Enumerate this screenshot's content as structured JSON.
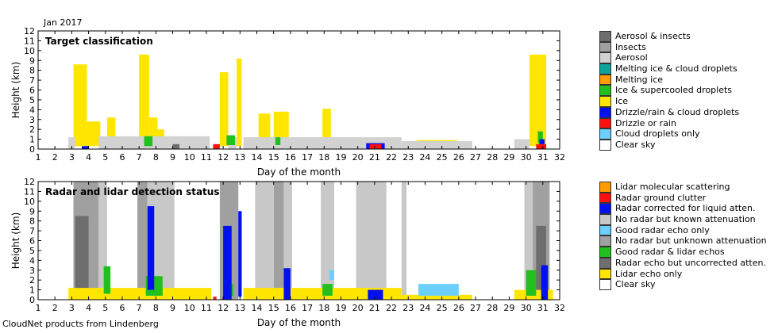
{
  "header": {
    "month_label": "Jan 2017"
  },
  "footer": {
    "credit": "CloudNet products from Lindenberg"
  },
  "chart_data": [
    {
      "type": "heatmap",
      "title": "Target classification",
      "xlabel": "Day of the month",
      "ylabel": "Height (km)",
      "xlim": [
        1,
        32
      ],
      "ylim": [
        0,
        12
      ],
      "xticks": [
        1,
        2,
        3,
        4,
        5,
        6,
        7,
        8,
        9,
        10,
        11,
        12,
        13,
        14,
        15,
        16,
        17,
        18,
        19,
        20,
        21,
        22,
        23,
        24,
        25,
        26,
        27,
        28,
        29,
        30,
        31,
        32
      ],
      "yticks": [
        0,
        1,
        2,
        3,
        4,
        5,
        6,
        7,
        8,
        9,
        10,
        11,
        12
      ],
      "legend": [
        {
          "label": "Aerosol & insects",
          "color": "#6e6e6e"
        },
        {
          "label": "Insects",
          "color": "#a0a0a0"
        },
        {
          "label": "Aerosol",
          "color": "#d2d2d2"
        },
        {
          "label": "Melting ice & cloud droplets",
          "color": "#0ea39a"
        },
        {
          "label": "Melting ice",
          "color": "#ff9a00"
        },
        {
          "label": "Ice & supercooled droplets",
          "color": "#22c01e"
        },
        {
          "label": "Ice",
          "color": "#ffe600"
        },
        {
          "label": "Drizzle/rain & cloud droplets",
          "color": "#0010ee"
        },
        {
          "label": "Drizzle or rain",
          "color": "#ff1010"
        },
        {
          "label": "Cloud droplets only",
          "color": "#6cd0ff"
        },
        {
          "label": "Clear sky",
          "color": "#ffffff"
        }
      ],
      "regions": [
        {
          "class": "Ice",
          "x0": 3.1,
          "x1": 3.9,
          "y0": 0.3,
          "y1": 8.6
        },
        {
          "class": "Ice",
          "x0": 3.9,
          "x1": 4.7,
          "y0": 0.3,
          "y1": 2.8
        },
        {
          "class": "Ice",
          "x0": 5.1,
          "x1": 5.6,
          "y0": 0.3,
          "y1": 3.2
        },
        {
          "class": "Ice",
          "x0": 7.0,
          "x1": 7.6,
          "y0": 0.3,
          "y1": 9.6
        },
        {
          "class": "Ice",
          "x0": 7.6,
          "x1": 8.1,
          "y0": 0.3,
          "y1": 3.2
        },
        {
          "class": "Ice",
          "x0": 8.1,
          "x1": 8.5,
          "y0": 0.3,
          "y1": 2.0
        },
        {
          "class": "Ice",
          "x0": 11.8,
          "x1": 12.3,
          "y0": 0.3,
          "y1": 7.8
        },
        {
          "class": "Ice",
          "x0": 12.8,
          "x1": 13.1,
          "y0": 0.3,
          "y1": 9.2
        },
        {
          "class": "Ice",
          "x0": 14.1,
          "x1": 14.8,
          "y0": 0.3,
          "y1": 3.6
        },
        {
          "class": "Ice",
          "x0": 15.0,
          "x1": 15.9,
          "y0": 0.3,
          "y1": 3.8
        },
        {
          "class": "Ice",
          "x0": 17.9,
          "x1": 18.4,
          "y0": 0.3,
          "y1": 4.1
        },
        {
          "class": "Ice",
          "x0": 23.5,
          "x1": 25.9,
          "y0": 0.1,
          "y1": 0.9
        },
        {
          "class": "Ice",
          "x0": 30.2,
          "x1": 31.2,
          "y0": 0.3,
          "y1": 9.6
        },
        {
          "class": "Aerosol",
          "x0": 2.8,
          "x1": 3.2,
          "y0": 0.0,
          "y1": 1.2
        },
        {
          "class": "Aerosol",
          "x0": 4.6,
          "x1": 11.2,
          "y0": 0.0,
          "y1": 1.3
        },
        {
          "class": "Aerosol",
          "x0": 12.3,
          "x1": 12.8,
          "y0": 0.0,
          "y1": 1.2
        },
        {
          "class": "Aerosol",
          "x0": 13.2,
          "x1": 22.6,
          "y0": 0.0,
          "y1": 1.2
        },
        {
          "class": "Aerosol",
          "x0": 22.6,
          "x1": 26.8,
          "y0": 0.0,
          "y1": 0.8
        },
        {
          "class": "Aerosol",
          "x0": 29.3,
          "x1": 30.2,
          "y0": 0.0,
          "y1": 1.0
        },
        {
          "class": "Aerosol & insects",
          "x0": 9.0,
          "x1": 9.4,
          "y0": 0.0,
          "y1": 0.5
        },
        {
          "class": "Ice & supercooled droplets",
          "x0": 7.3,
          "x1": 7.8,
          "y0": 0.3,
          "y1": 1.3
        },
        {
          "class": "Ice & supercooled droplets",
          "x0": 12.2,
          "x1": 12.7,
          "y0": 0.4,
          "y1": 1.4
        },
        {
          "class": "Ice & supercooled droplets",
          "x0": 15.1,
          "x1": 15.4,
          "y0": 0.4,
          "y1": 1.2
        },
        {
          "class": "Ice & supercooled droplets",
          "x0": 30.7,
          "x1": 31.0,
          "y0": 0.6,
          "y1": 1.8
        },
        {
          "class": "Drizzle/rain & cloud droplets",
          "x0": 3.6,
          "x1": 4.0,
          "y0": 0.0,
          "y1": 0.3
        },
        {
          "class": "Drizzle/rain & cloud droplets",
          "x0": 20.5,
          "x1": 21.6,
          "y0": 0.0,
          "y1": 0.6
        },
        {
          "class": "Drizzle/rain & cloud droplets",
          "x0": 30.8,
          "x1": 31.1,
          "y0": 0.3,
          "y1": 1.0
        },
        {
          "class": "Drizzle or rain",
          "x0": 11.4,
          "x1": 11.8,
          "y0": 0.0,
          "y1": 0.5
        },
        {
          "class": "Drizzle or rain",
          "x0": 20.7,
          "x1": 21.4,
          "y0": 0.0,
          "y1": 0.5
        },
        {
          "class": "Drizzle or rain",
          "x0": 30.6,
          "x1": 31.2,
          "y0": 0.0,
          "y1": 0.5
        }
      ]
    },
    {
      "type": "heatmap",
      "title": "Radar and lidar detection status",
      "xlabel": "Day of the month",
      "ylabel": "Height (km)",
      "xlim": [
        1,
        32
      ],
      "ylim": [
        0,
        12
      ],
      "xticks": [
        1,
        2,
        3,
        4,
        5,
        6,
        7,
        8,
        9,
        10,
        11,
        12,
        13,
        14,
        15,
        16,
        17,
        18,
        19,
        20,
        21,
        22,
        23,
        24,
        25,
        26,
        27,
        28,
        29,
        30,
        31,
        32
      ],
      "yticks": [
        0,
        1,
        2,
        3,
        4,
        5,
        6,
        7,
        8,
        9,
        10,
        11,
        12
      ],
      "legend": [
        {
          "label": "Lidar molecular scattering",
          "color": "#ff9a00"
        },
        {
          "label": "Radar ground clutter",
          "color": "#ff1010"
        },
        {
          "label": "Radar corrected for liquid atten.",
          "color": "#0010ee"
        },
        {
          "label": "No radar but known attenuation",
          "color": "#c8c8c8"
        },
        {
          "label": "Good radar echo only",
          "color": "#6cd0ff"
        },
        {
          "label": "No radar but unknown attenuation",
          "color": "#a0a0a0"
        },
        {
          "label": "Good radar & lidar echos",
          "color": "#22c01e"
        },
        {
          "label": "Radar echo but uncorrected atten.",
          "color": "#6e6e6e"
        },
        {
          "label": "Lidar echo only",
          "color": "#ffe600"
        },
        {
          "label": "Clear sky",
          "color": "#ffffff"
        }
      ],
      "regions": [
        {
          "class": "No radar but unknown attenuation",
          "x0": 3.1,
          "x1": 4.6,
          "y0": 0.0,
          "y1": 12.0
        },
        {
          "class": "No radar but unknown attenuation",
          "x0": 6.9,
          "x1": 7.5,
          "y0": 0.0,
          "y1": 12.0
        },
        {
          "class": "No radar but unknown attenuation",
          "x0": 11.8,
          "x1": 12.9,
          "y0": 0.0,
          "y1": 12.0
        },
        {
          "class": "No radar but unknown attenuation",
          "x0": 15.0,
          "x1": 15.6,
          "y0": 0.0,
          "y1": 12.0
        },
        {
          "class": "No radar but unknown attenuation",
          "x0": 30.4,
          "x1": 31.4,
          "y0": 0.0,
          "y1": 12.0
        },
        {
          "class": "No radar but known attenuation",
          "x0": 4.6,
          "x1": 5.1,
          "y0": 0.0,
          "y1": 12.0
        },
        {
          "class": "No radar but known attenuation",
          "x0": 7.5,
          "x1": 9.1,
          "y0": 0.0,
          "y1": 12.0
        },
        {
          "class": "No radar but known attenuation",
          "x0": 13.9,
          "x1": 15.0,
          "y0": 0.0,
          "y1": 12.0
        },
        {
          "class": "No radar but known attenuation",
          "x0": 15.6,
          "x1": 16.1,
          "y0": 0.0,
          "y1": 12.0
        },
        {
          "class": "No radar but known attenuation",
          "x0": 17.8,
          "x1": 18.6,
          "y0": 0.0,
          "y1": 12.0
        },
        {
          "class": "No radar but known attenuation",
          "x0": 19.9,
          "x1": 21.7,
          "y0": 0.0,
          "y1": 12.0
        },
        {
          "class": "No radar but known attenuation",
          "x0": 22.6,
          "x1": 22.9,
          "y0": 0.0,
          "y1": 12.0
        },
        {
          "class": "No radar but known attenuation",
          "x0": 29.9,
          "x1": 30.4,
          "y0": 0.0,
          "y1": 12.0
        },
        {
          "class": "Radar echo but uncorrected atten.",
          "x0": 3.2,
          "x1": 4.0,
          "y0": 0.0,
          "y1": 8.5
        },
        {
          "class": "Radar echo but uncorrected atten.",
          "x0": 30.6,
          "x1": 31.2,
          "y0": 0.0,
          "y1": 7.5
        },
        {
          "class": "Lidar echo only",
          "x0": 2.8,
          "x1": 11.3,
          "y0": 0.0,
          "y1": 1.2
        },
        {
          "class": "Lidar echo only",
          "x0": 13.2,
          "x1": 22.6,
          "y0": 0.0,
          "y1": 1.2
        },
        {
          "class": "Lidar echo only",
          "x0": 22.6,
          "x1": 26.8,
          "y0": 0.0,
          "y1": 0.5
        },
        {
          "class": "Lidar echo only",
          "x0": 29.3,
          "x1": 31.6,
          "y0": 0.0,
          "y1": 1.0
        },
        {
          "class": "Good radar echo only",
          "x0": 23.6,
          "x1": 26.0,
          "y0": 0.4,
          "y1": 1.6
        },
        {
          "class": "Good radar echo only",
          "x0": 18.3,
          "x1": 18.6,
          "y0": 2.0,
          "y1": 3.0
        },
        {
          "class": "Good radar & lidar echos",
          "x0": 4.9,
          "x1": 5.3,
          "y0": 0.6,
          "y1": 3.4
        },
        {
          "class": "Good radar & lidar echos",
          "x0": 7.4,
          "x1": 8.4,
          "y0": 0.4,
          "y1": 2.4
        },
        {
          "class": "Good radar & lidar echos",
          "x0": 12.1,
          "x1": 12.6,
          "y0": 0.4,
          "y1": 1.6
        },
        {
          "class": "Good radar & lidar echos",
          "x0": 17.9,
          "x1": 18.5,
          "y0": 0.4,
          "y1": 1.6
        },
        {
          "class": "Good radar & lidar echos",
          "x0": 30.0,
          "x1": 30.6,
          "y0": 0.4,
          "y1": 3.0
        },
        {
          "class": "Radar corrected for liquid atten.",
          "x0": 12.0,
          "x1": 12.5,
          "y0": 0.0,
          "y1": 7.5
        },
        {
          "class": "Radar corrected for liquid atten.",
          "x0": 12.9,
          "x1": 13.1,
          "y0": 0.3,
          "y1": 9.0
        },
        {
          "class": "Radar corrected for liquid atten.",
          "x0": 7.5,
          "x1": 7.9,
          "y0": 1.0,
          "y1": 9.5
        },
        {
          "class": "Radar corrected for liquid atten.",
          "x0": 15.6,
          "x1": 16.0,
          "y0": 0.0,
          "y1": 3.2
        },
        {
          "class": "Radar corrected for liquid atten.",
          "x0": 30.9,
          "x1": 31.3,
          "y0": 0.0,
          "y1": 3.5
        },
        {
          "class": "Radar corrected for liquid atten.",
          "x0": 20.6,
          "x1": 21.5,
          "y0": 0.0,
          "y1": 1.0
        },
        {
          "class": "Radar ground clutter",
          "x0": 11.4,
          "x1": 11.6,
          "y0": 0.0,
          "y1": 0.3
        }
      ]
    }
  ]
}
